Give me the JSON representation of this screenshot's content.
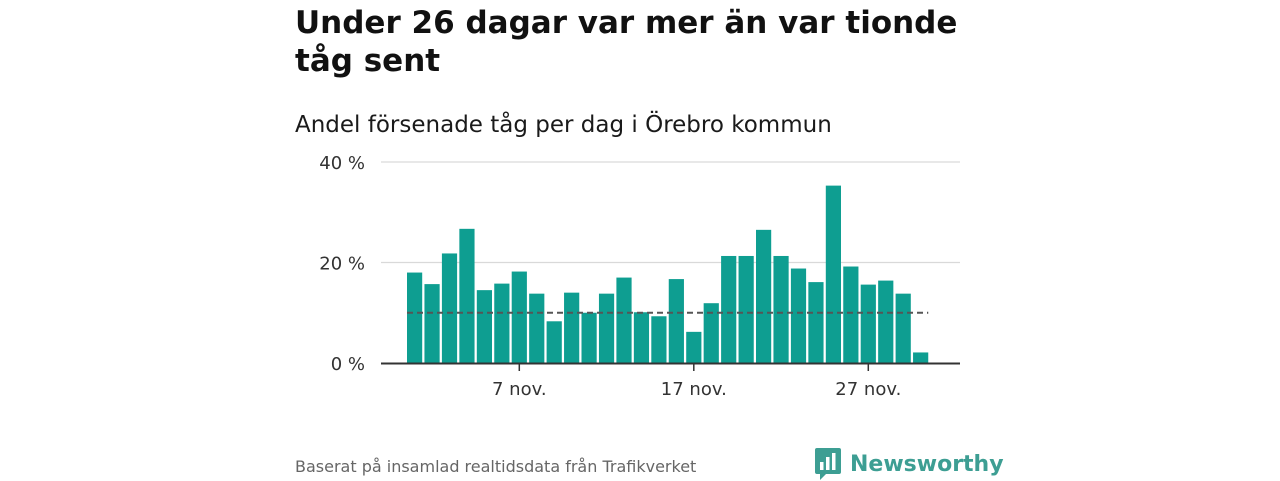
{
  "title": "Under 26 dagar var mer än var tionde tåg sent",
  "subtitle": "Andel försenade tåg per dag i Örebro kommun",
  "source": "Baserat på insamlad realtidsdata från Trafikverket",
  "brand": {
    "name": "Newsworthy",
    "color": "#3d9e93",
    "icon": "bar-chart-speech-bubble-icon"
  },
  "colors": {
    "bar": "#0e9e91",
    "reference_line": "#555555",
    "grid": "#d9d9d9",
    "axis": "#333333"
  },
  "chart_data": {
    "type": "bar",
    "title": "Under 26 dagar var mer än var tionde tåg sent",
    "subtitle": "Andel försenade tåg per dag i Örebro kommun",
    "x": [
      "2021-11-01",
      "2021-11-02",
      "2021-11-03",
      "2021-11-04",
      "2021-11-05",
      "2021-11-06",
      "2021-11-07",
      "2021-11-08",
      "2021-11-09",
      "2021-11-10",
      "2021-11-11",
      "2021-11-12",
      "2021-11-13",
      "2021-11-14",
      "2021-11-15",
      "2021-11-16",
      "2021-11-17",
      "2021-11-18",
      "2021-11-19",
      "2021-11-20",
      "2021-11-21",
      "2021-11-22",
      "2021-11-23",
      "2021-11-24",
      "2021-11-25",
      "2021-11-26",
      "2021-11-27",
      "2021-11-28",
      "2021-11-29",
      "2021-11-30"
    ],
    "values": [
      18,
      15.7,
      21.8,
      26.7,
      14.5,
      15.8,
      18.2,
      13.8,
      8.3,
      14,
      10,
      13.8,
      17,
      10.1,
      9.3,
      16.7,
      6.2,
      11.9,
      21.3,
      21.3,
      26.5,
      21.3,
      18.8,
      16.1,
      35.3,
      19.2,
      15.6,
      16.4,
      13.8,
      2.1
    ],
    "reference_line": 10,
    "ylim": [
      0,
      40
    ],
    "y_ticks": [
      0,
      20,
      40
    ],
    "y_tick_labels": [
      "0 %",
      "20 %",
      "40 %"
    ],
    "x_ticks": [
      "2021-11-07",
      "2021-11-17",
      "2021-11-27"
    ],
    "x_tick_labels": [
      "7 nov.",
      "17 nov.",
      "27 nov."
    ],
    "xlabel": "",
    "ylabel": "",
    "grid": true,
    "legend": "none"
  }
}
